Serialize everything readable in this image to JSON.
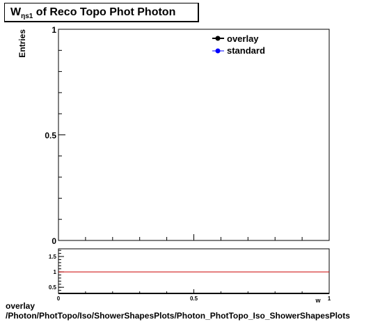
{
  "title": {
    "main": "W",
    "subscript": "ηs1",
    "rest": " of Reco Topo Phot Photon"
  },
  "ylabel": "Entries",
  "xlabel_clipped": "w",
  "legend": [
    {
      "name": "overlay",
      "color": "#000000"
    },
    {
      "name": "standard",
      "color": "#0000ff"
    }
  ],
  "footer": {
    "line1": "overlay",
    "line2": "/Photon/PhotTopo/Iso/ShowerShapesPlots/Photon_PhotTopo_Iso_ShowerShapesPlots"
  },
  "chart_data": [
    {
      "type": "line",
      "title": "W ηs1 of Reco Topo Phot Photon",
      "xlabel": "w",
      "ylabel": "Entries",
      "xlim": [
        0,
        1
      ],
      "ylim": [
        0,
        1
      ],
      "y_ticks": [
        "0",
        "0.5",
        "1"
      ],
      "grid": false,
      "legend_position": "top-right",
      "series": [
        {
          "name": "overlay",
          "color": "#000000",
          "x": [],
          "y": []
        },
        {
          "name": "standard",
          "color": "#0000ff",
          "x": [],
          "y": []
        }
      ]
    },
    {
      "type": "line",
      "xlim": [
        0,
        1
      ],
      "ylim": [
        0.3,
        1.75
      ],
      "x_ticks": [
        "0",
        "0.5",
        "1"
      ],
      "y_ticks": [
        "0.5",
        "1",
        "1.5"
      ],
      "reference_line": {
        "y": 1,
        "color": "#cc0000"
      }
    }
  ]
}
